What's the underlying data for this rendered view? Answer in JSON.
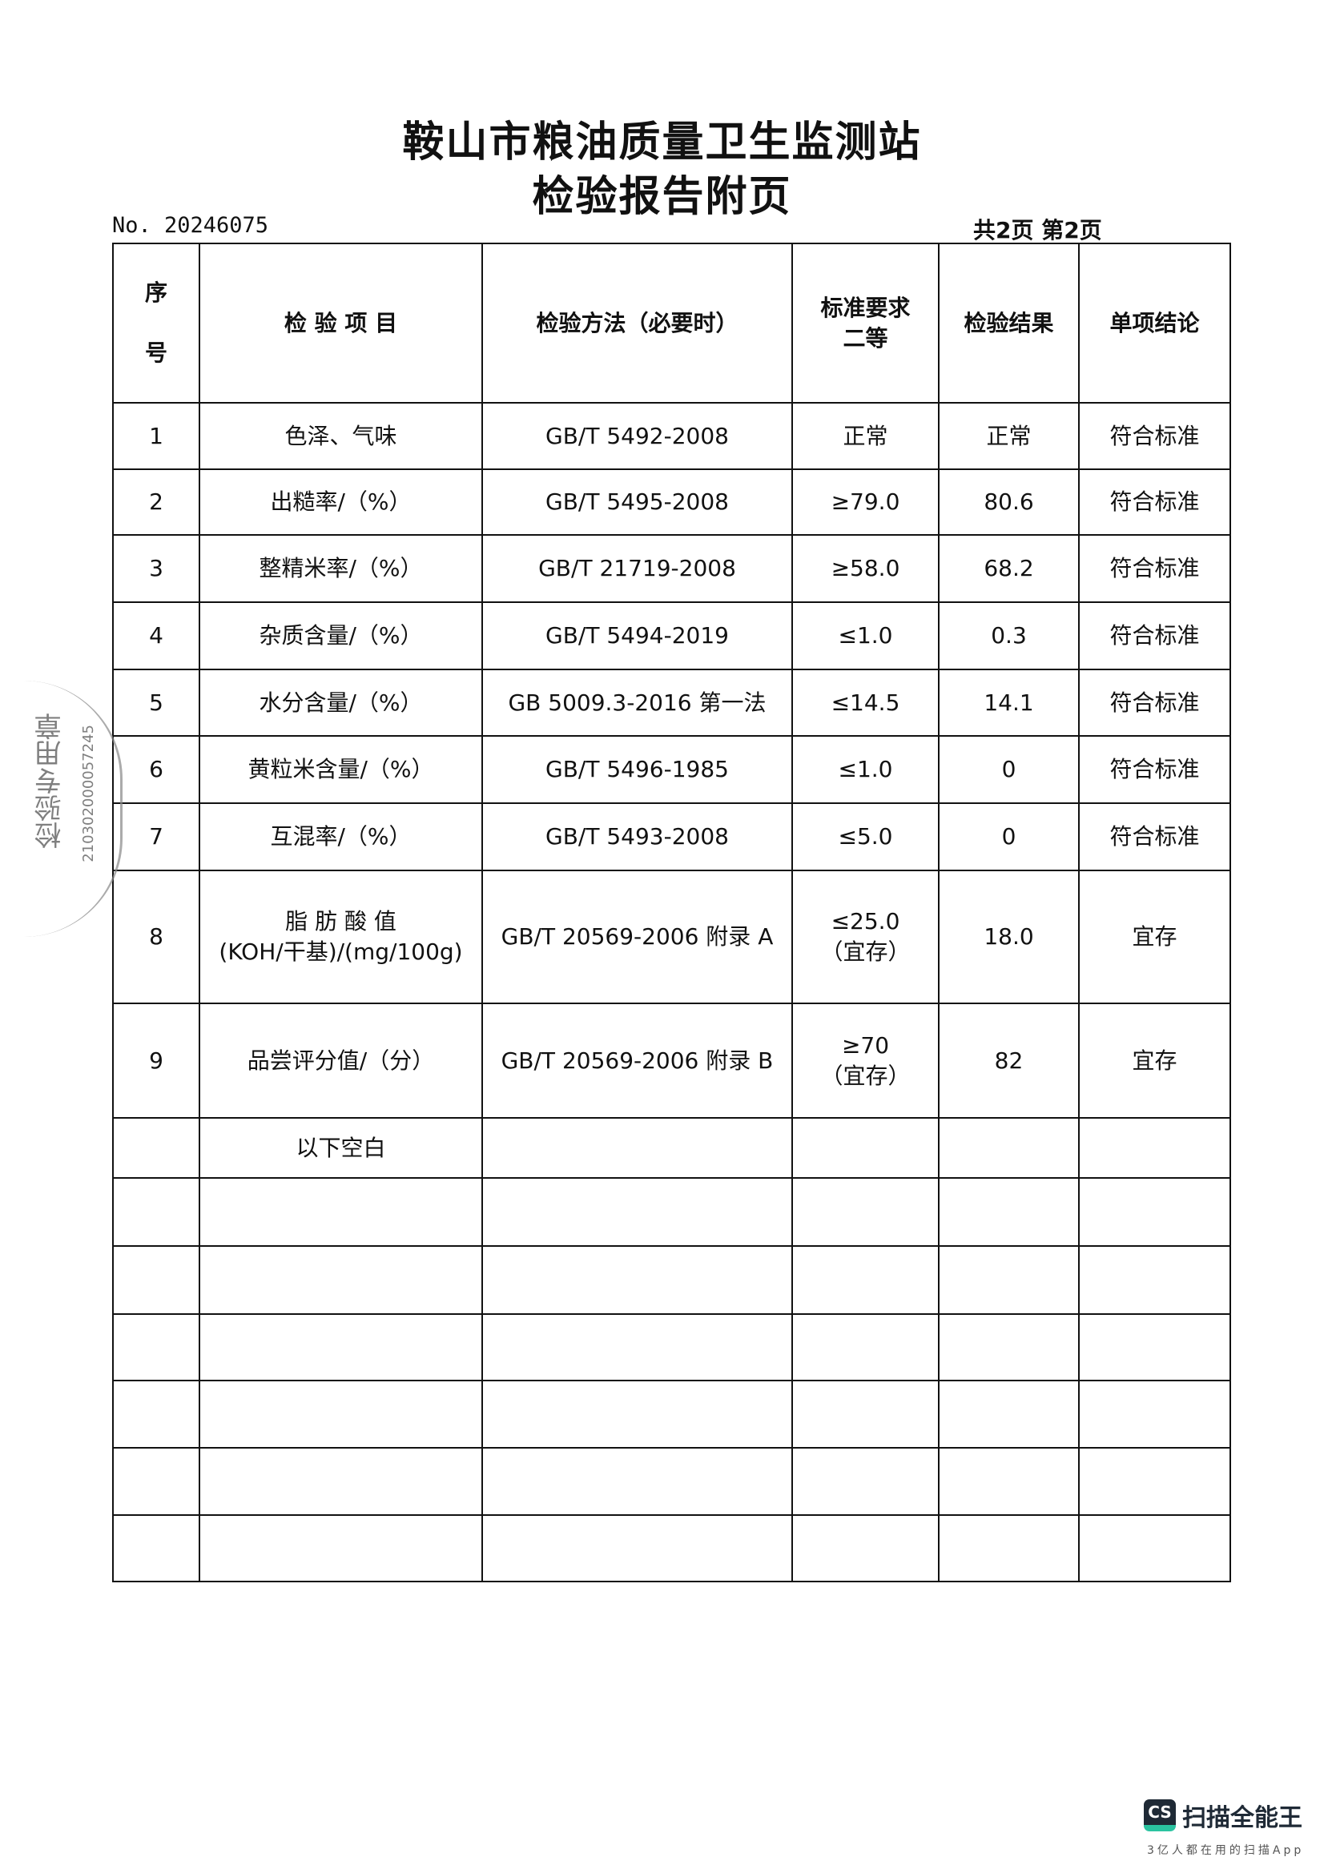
{
  "header": {
    "org": "鞍山市粮油质量卫生监测站",
    "title": "检验报告附页",
    "report_no": "No. 20246075",
    "page_info": "共2页 第2页"
  },
  "table": {
    "columns": {
      "seq": [
        "序",
        "号"
      ],
      "item": "检 验 项 目",
      "method": "检验方法（必要时）",
      "standard": [
        "标准要求",
        "二等"
      ],
      "result": "检验结果",
      "conclusion": "单项结论"
    },
    "rows": [
      {
        "seq": "1",
        "item": [
          "色泽、气味"
        ],
        "method": "GB/T 5492-2008",
        "standard": [
          "正常"
        ],
        "result": "正常",
        "conclusion": "符合标准"
      },
      {
        "seq": "2",
        "item": [
          "出糙率/（%）"
        ],
        "method": "GB/T 5495-2008",
        "standard": [
          "≥79.0"
        ],
        "result": "80.6",
        "conclusion": "符合标准"
      },
      {
        "seq": "3",
        "item": [
          "整精米率/（%）"
        ],
        "method": "GB/T 21719-2008",
        "standard": [
          "≥58.0"
        ],
        "result": "68.2",
        "conclusion": "符合标准"
      },
      {
        "seq": "4",
        "item": [
          "杂质含量/（%）"
        ],
        "method": "GB/T 5494-2019",
        "standard": [
          "≤1.0"
        ],
        "result": "0.3",
        "conclusion": "符合标准"
      },
      {
        "seq": "5",
        "item": [
          "水分含量/（%）"
        ],
        "method": "GB 5009.3-2016 第一法",
        "standard": [
          "≤14.5"
        ],
        "result": "14.1",
        "conclusion": "符合标准"
      },
      {
        "seq": "6",
        "item": [
          "黄粒米含量/（%）"
        ],
        "method": "GB/T 5496-1985",
        "standard": [
          "≤1.0"
        ],
        "result": "0",
        "conclusion": "符合标准"
      },
      {
        "seq": "7",
        "item": [
          "互混率/（%）"
        ],
        "method": "GB/T 5493-2008",
        "standard": [
          "≤5.0"
        ],
        "result": "0",
        "conclusion": "符合标准"
      },
      {
        "seq": "8",
        "item": [
          "脂 肪 酸 值",
          "(KOH/干基)/(mg/100g)"
        ],
        "method": "GB/T 20569-2006 附录 A",
        "standard": [
          "≤25.0",
          "（宜存）"
        ],
        "result": "18.0",
        "conclusion": "宜存"
      },
      {
        "seq": "9",
        "item": [
          "品尝评分值/（分）"
        ],
        "method": "GB/T 20569-2006 附录 B",
        "standard": [
          "≥70",
          "（宜存）"
        ],
        "result": "82",
        "conclusion": "宜存"
      }
    ],
    "blank_note": "以下空白"
  },
  "stamp": {
    "text": "检验专用章",
    "number": "210302000057245"
  },
  "watermark": {
    "app": "扫描全能王",
    "logo": "CS",
    "slogan": "3亿人都在用的扫描App",
    "accent": "#2bc3a0",
    "dark": "#1f2a36"
  }
}
